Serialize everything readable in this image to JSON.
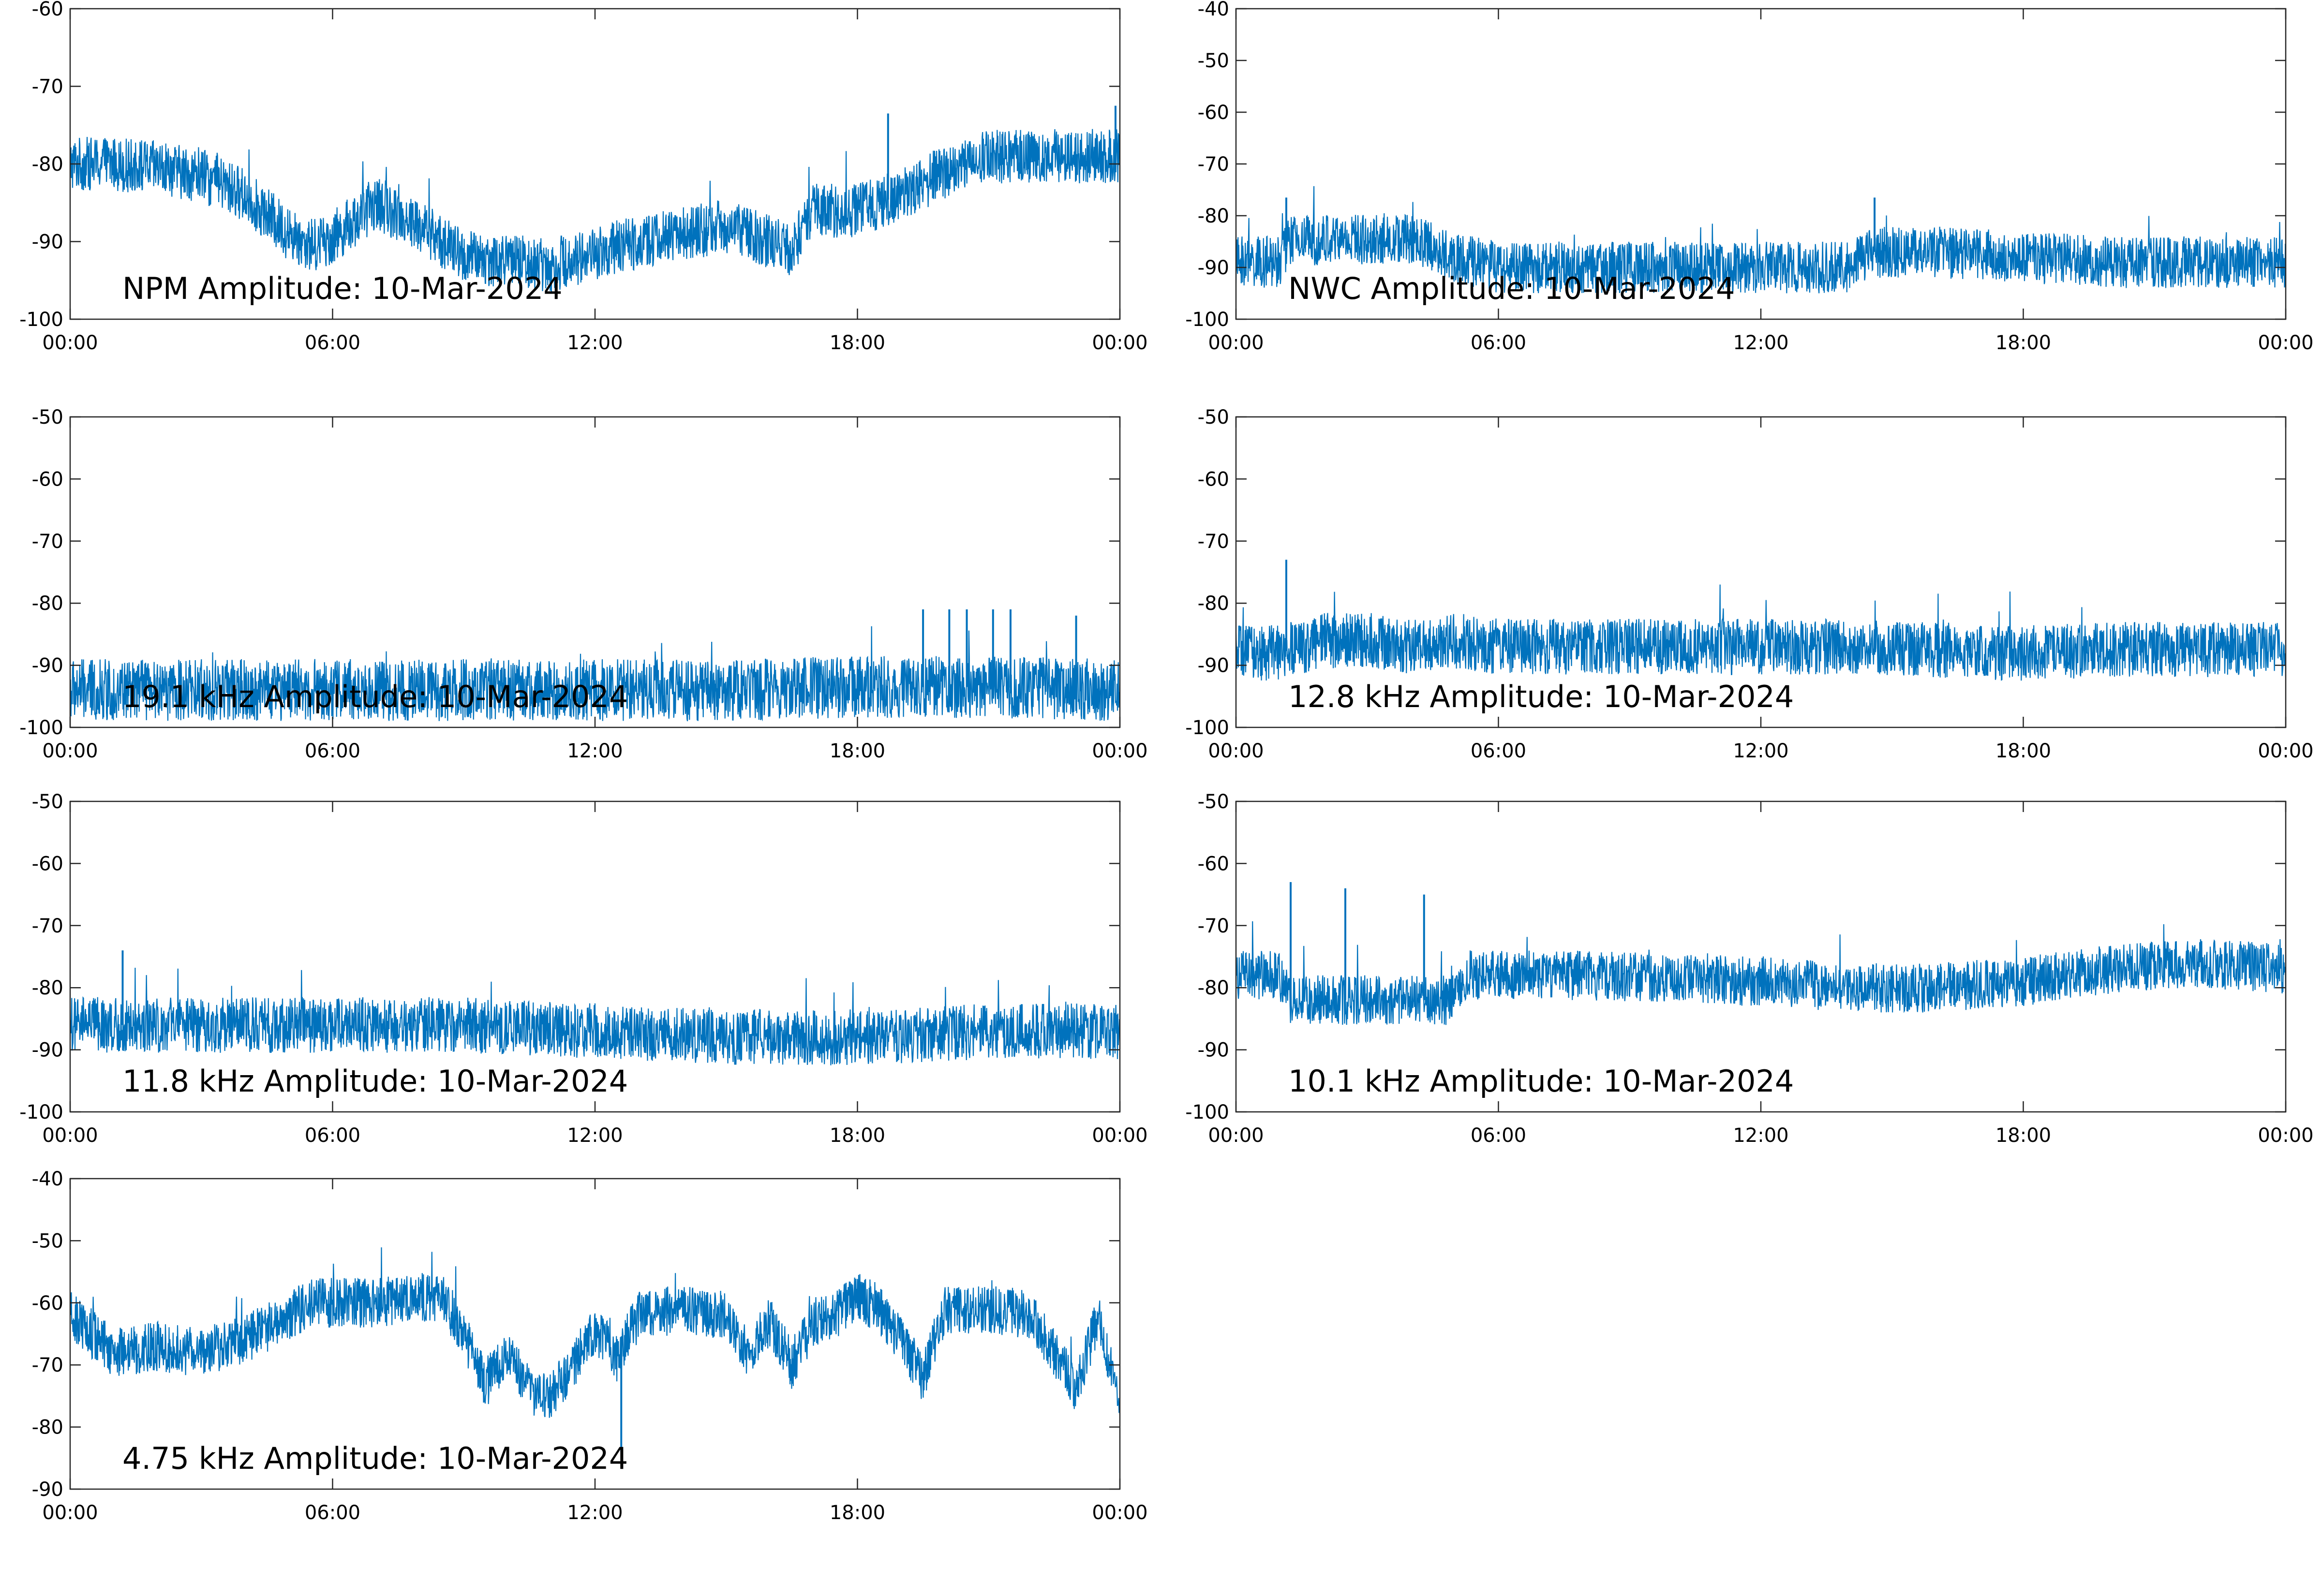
{
  "line_color": "#0072BD",
  "chart_data": [
    {
      "type": "line",
      "title": "NPM Amplitude: 10-Mar-2024",
      "xlim": [
        "00:00",
        "24:00"
      ],
      "ylim": [
        -100,
        -60
      ],
      "xticks": [
        "00:00",
        "06:00",
        "12:00",
        "18:00",
        "00:00"
      ],
      "yticks": [
        "-60",
        "-70",
        "-80",
        "-90",
        "-100"
      ],
      "grid": false,
      "x_hours": [
        0,
        1,
        2,
        3,
        4,
        5,
        5.5,
        6,
        7,
        8,
        9,
        10,
        11,
        12,
        13,
        14,
        15,
        16,
        16.5,
        17,
        18,
        19,
        20,
        21,
        22,
        23,
        24
      ],
      "y_center": [
        -80,
        -80,
        -80.5,
        -81.5,
        -84,
        -89,
        -90.5,
        -89.5,
        -85,
        -88,
        -92,
        -92.5,
        -93,
        -91.5,
        -90,
        -89,
        -88,
        -90,
        -91,
        -86,
        -86,
        -84,
        -81,
        -79,
        -79,
        -79,
        -79
      ],
      "noise_band": 3.5,
      "spikes": [
        {
          "x": 18.7,
          "y": -73.5
        },
        {
          "x": 23.9,
          "y": -72.5
        }
      ]
    },
    {
      "type": "line",
      "title": "NWC Amplitude: 10-Mar-2024",
      "xlim": [
        "00:00",
        "24:00"
      ],
      "ylim": [
        -100,
        -40
      ],
      "xticks": [
        "00:00",
        "06:00",
        "12:00",
        "18:00",
        "00:00"
      ],
      "yticks": [
        "-40",
        "-50",
        "-60",
        "-70",
        "-80",
        "-90",
        "-100"
      ],
      "grid": false,
      "x_hours": [
        0,
        1,
        1.2,
        2,
        3,
        4,
        5,
        6,
        8,
        10,
        12,
        14,
        14.5,
        16,
        18,
        20,
        22,
        24
      ],
      "y_center": [
        -89,
        -89,
        -85,
        -84.5,
        -84.5,
        -84.5,
        -88,
        -90,
        -90,
        -90,
        -90,
        -90,
        -87,
        -87,
        -88,
        -89,
        -89,
        -89
      ],
      "noise_band": 5,
      "spikes": [
        {
          "x": 1.15,
          "y": -76.5
        },
        {
          "x": 14.6,
          "y": -76.5
        }
      ]
    },
    {
      "type": "line",
      "title": "19.1 kHz Amplitude: 10-Mar-2024",
      "xlim": [
        "00:00",
        "24:00"
      ],
      "ylim": [
        -100,
        -50
      ],
      "xticks": [
        "00:00",
        "06:00",
        "12:00",
        "18:00",
        "00:00"
      ],
      "yticks": [
        "-50",
        "-60",
        "-70",
        "-80",
        "-90",
        "-100"
      ],
      "grid": false,
      "x_hours": [
        0,
        3,
        6,
        9,
        12,
        15,
        18,
        21,
        24
      ],
      "y_center": [
        -94,
        -94,
        -94,
        -94,
        -94,
        -94,
        -93.5,
        -93.5,
        -94
      ],
      "noise_band": 5,
      "spikes": [
        {
          "x": 19.5,
          "y": -81
        },
        {
          "x": 20.1,
          "y": -81
        },
        {
          "x": 20.5,
          "y": -81
        },
        {
          "x": 21.1,
          "y": -81
        },
        {
          "x": 21.5,
          "y": -81
        },
        {
          "x": 23.0,
          "y": -82
        }
      ]
    },
    {
      "type": "line",
      "title": "12.8 kHz Amplitude: 10-Mar-2024",
      "xlim": [
        "00:00",
        "24:00"
      ],
      "ylim": [
        -100,
        -50
      ],
      "xticks": [
        "00:00",
        "06:00",
        "12:00",
        "18:00",
        "00:00"
      ],
      "yticks": [
        "-50",
        "-60",
        "-70",
        "-80",
        "-90",
        "-100"
      ],
      "grid": false,
      "x_hours": [
        0,
        1,
        2,
        3,
        4,
        5,
        6,
        8,
        10,
        12,
        14,
        16,
        18,
        20,
        22,
        24
      ],
      "y_center": [
        -88,
        -88,
        -86,
        -86,
        -87,
        -86,
        -87,
        -87,
        -87,
        -87,
        -87,
        -87.5,
        -88,
        -87.5,
        -87.5,
        -87.5
      ],
      "noise_band": 4.5,
      "spikes": [
        {
          "x": 1.15,
          "y": -73
        }
      ]
    },
    {
      "type": "line",
      "title": "11.8 kHz Amplitude: 10-Mar-2024",
      "xlim": [
        "00:00",
        "24:00"
      ],
      "ylim": [
        -100,
        -50
      ],
      "xticks": [
        "00:00",
        "06:00",
        "12:00",
        "18:00",
        "00:00"
      ],
      "yticks": [
        "-50",
        "-60",
        "-70",
        "-80",
        "-90",
        "-100"
      ],
      "grid": false,
      "x_hours": [
        0,
        3,
        6,
        9,
        12,
        15,
        18,
        21,
        24
      ],
      "y_center": [
        -86,
        -86,
        -86,
        -86,
        -87,
        -88,
        -88,
        -87,
        -87
      ],
      "noise_band": 4.5,
      "spikes": [
        {
          "x": 1.2,
          "y": -74
        }
      ]
    },
    {
      "type": "line",
      "title": "10.1 kHz Amplitude: 10-Mar-2024",
      "xlim": [
        "00:00",
        "24:00"
      ],
      "ylim": [
        -100,
        -50
      ],
      "xticks": [
        "00:00",
        "06:00",
        "12:00",
        "18:00",
        "00:00"
      ],
      "yticks": [
        "-50",
        "-60",
        "-70",
        "-80",
        "-90",
        "-100"
      ],
      "grid": false,
      "x_hours": [
        0,
        1,
        1.2,
        3,
        5,
        5.2,
        8,
        12,
        14,
        16,
        18,
        20,
        22,
        24
      ],
      "y_center": [
        -78,
        -78,
        -82,
        -82,
        -82,
        -78,
        -78,
        -79,
        -80,
        -80,
        -79,
        -77,
        -76,
        -77
      ],
      "noise_band": 4,
      "spikes": [
        {
          "x": 1.25,
          "y": -63
        },
        {
          "x": 2.5,
          "y": -64
        },
        {
          "x": 4.3,
          "y": -65
        }
      ]
    },
    {
      "type": "line",
      "title": "4.75 kHz Amplitude: 10-Mar-2024",
      "xlim": [
        "00:00",
        "24:00"
      ],
      "ylim": [
        -90,
        -40
      ],
      "xticks": [
        "00:00",
        "06:00",
        "12:00",
        "18:00",
        "00:00"
      ],
      "yticks": [
        "-40",
        "-50",
        "-60",
        "-70",
        "-80",
        "-90"
      ],
      "grid": false,
      "x_hours": [
        0,
        0.5,
        1,
        2,
        3,
        4,
        5,
        5.5,
        6,
        7,
        8,
        8.5,
        9,
        9.5,
        10,
        10.5,
        11,
        11.5,
        12,
        12.5,
        13,
        14,
        15,
        15.5,
        16,
        16.5,
        17,
        17.5,
        18,
        18.5,
        19,
        19.5,
        20,
        21,
        22,
        22.5,
        23,
        23.5,
        24
      ],
      "y_center": [
        -62,
        -65,
        -68,
        -67,
        -68,
        -66,
        -62,
        -60,
        -60,
        -60,
        -59,
        -59,
        -65,
        -73,
        -68,
        -74,
        -75,
        -70,
        -64,
        -69,
        -62,
        -61,
        -62,
        -68,
        -63,
        -70,
        -63,
        -62,
        -59,
        -61,
        -66,
        -72,
        -61,
        -61,
        -62,
        -68,
        -74,
        -62,
        -77
      ],
      "noise_band": 4,
      "spikes": [
        {
          "x": 12.6,
          "y": -84
        }
      ]
    }
  ]
}
